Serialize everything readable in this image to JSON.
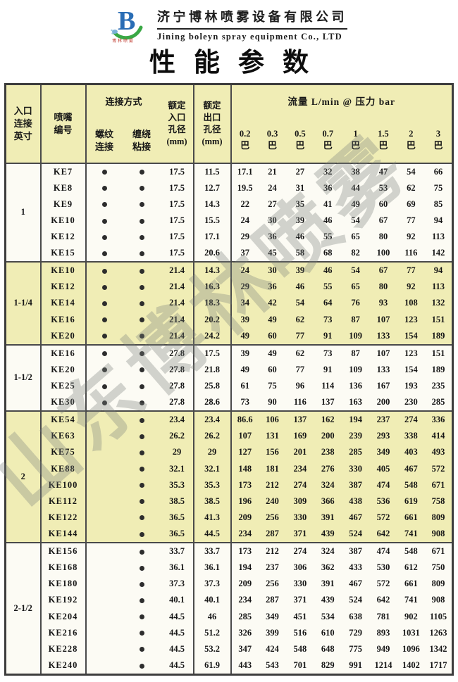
{
  "brand": {
    "company_cn": "济宁博林喷雾设备有限公司",
    "company_en": "Jining boleyn spray equipment Co., LTD",
    "logo_letter": "B",
    "logo_caption": "博林喷雾"
  },
  "title": "性能参数",
  "watermark": "山东博林喷雾",
  "colors": {
    "band_yellow": "#f0edb5",
    "band_white": "#fcfbf4",
    "border_dark": "#4a4a4a",
    "logo_blue": "#2a6db5",
    "logo_green": "#3aa845",
    "logo_caption_red": "#c0392e"
  },
  "table": {
    "headers": {
      "inlet": "入口\n连接\n英寸",
      "nozzle": "喷嘴\n编号",
      "connection": "连接方式",
      "thread": "螺纹\n连接",
      "wrap": "缠绕\n粘接",
      "in_dia": "额定\n入口\n孔径\n(mm)",
      "out_dia": "额定\n出口\n孔径\n(mm)",
      "flow": "流量  L/min @  压力 bar"
    },
    "pressures": [
      "0.2",
      "0.3",
      "0.5",
      "0.7",
      "1",
      "1.5",
      "2",
      "3"
    ],
    "pressure_unit": "巴",
    "groups": [
      {
        "inlet": "1",
        "band": "white",
        "rows": [
          {
            "nozzle": "KE7",
            "thread": true,
            "wrap": true,
            "in_dia": "17.5",
            "out_dia": "11.5",
            "flows": [
              "17.1",
              "21",
              "27",
              "32",
              "38",
              "47",
              "54",
              "66"
            ]
          },
          {
            "nozzle": "KE8",
            "thread": true,
            "wrap": true,
            "in_dia": "17.5",
            "out_dia": "12.7",
            "flows": [
              "19.5",
              "24",
              "31",
              "36",
              "44",
              "53",
              "62",
              "75"
            ]
          },
          {
            "nozzle": "KE9",
            "thread": true,
            "wrap": true,
            "in_dia": "17.5",
            "out_dia": "14.3",
            "flows": [
              "22",
              "27",
              "35",
              "41",
              "49",
              "60",
              "69",
              "85"
            ]
          },
          {
            "nozzle": "KE10",
            "thread": true,
            "wrap": true,
            "in_dia": "17.5",
            "out_dia": "15.5",
            "flows": [
              "24",
              "30",
              "39",
              "46",
              "54",
              "67",
              "77",
              "94"
            ]
          },
          {
            "nozzle": "KE12",
            "thread": true,
            "wrap": true,
            "in_dia": "17.5",
            "out_dia": "17.1",
            "flows": [
              "29",
              "36",
              "46",
              "55",
              "65",
              "80",
              "92",
              "113"
            ]
          },
          {
            "nozzle": "KE15",
            "thread": true,
            "wrap": true,
            "in_dia": "17.5",
            "out_dia": "20.6",
            "flows": [
              "37",
              "45",
              "58",
              "68",
              "82",
              "100",
              "116",
              "142"
            ]
          }
        ]
      },
      {
        "inlet": "1-1/4",
        "band": "yellow",
        "rows": [
          {
            "nozzle": "KE10",
            "thread": true,
            "wrap": true,
            "in_dia": "21.4",
            "out_dia": "14.3",
            "flows": [
              "24",
              "30",
              "39",
              "46",
              "54",
              "67",
              "77",
              "94"
            ]
          },
          {
            "nozzle": "KE12",
            "thread": true,
            "wrap": true,
            "in_dia": "21.4",
            "out_dia": "16.3",
            "flows": [
              "29",
              "36",
              "46",
              "55",
              "65",
              "80",
              "92",
              "113"
            ]
          },
          {
            "nozzle": "KE14",
            "thread": true,
            "wrap": true,
            "in_dia": "21.4",
            "out_dia": "18.3",
            "flows": [
              "34",
              "42",
              "54",
              "64",
              "76",
              "93",
              "108",
              "132"
            ]
          },
          {
            "nozzle": "KE16",
            "thread": true,
            "wrap": true,
            "in_dia": "21.4",
            "out_dia": "20.2",
            "flows": [
              "39",
              "49",
              "62",
              "73",
              "87",
              "107",
              "123",
              "151"
            ]
          },
          {
            "nozzle": "KE20",
            "thread": true,
            "wrap": true,
            "in_dia": "21.4",
            "out_dia": "24.2",
            "flows": [
              "49",
              "60",
              "77",
              "91",
              "109",
              "133",
              "154",
              "189"
            ]
          }
        ]
      },
      {
        "inlet": "1-1/2",
        "band": "white",
        "rows": [
          {
            "nozzle": "KE16",
            "thread": true,
            "wrap": true,
            "in_dia": "27.8",
            "out_dia": "17.5",
            "flows": [
              "39",
              "49",
              "62",
              "73",
              "87",
              "107",
              "123",
              "151"
            ]
          },
          {
            "nozzle": "KE20",
            "thread": true,
            "wrap": true,
            "in_dia": "27.8",
            "out_dia": "21.8",
            "flows": [
              "49",
              "60",
              "77",
              "91",
              "109",
              "133",
              "154",
              "189"
            ]
          },
          {
            "nozzle": "KE25",
            "thread": true,
            "wrap": true,
            "in_dia": "27.8",
            "out_dia": "25.8",
            "flows": [
              "61",
              "75",
              "96",
              "114",
              "136",
              "167",
              "193",
              "235"
            ]
          },
          {
            "nozzle": "KE30",
            "thread": true,
            "wrap": true,
            "in_dia": "27.8",
            "out_dia": "28.6",
            "flows": [
              "73",
              "90",
              "116",
              "137",
              "163",
              "200",
              "230",
              "285"
            ]
          }
        ]
      },
      {
        "inlet": "2",
        "band": "yellow",
        "rows": [
          {
            "nozzle": "KE54",
            "thread": false,
            "wrap": true,
            "in_dia": "23.4",
            "out_dia": "23.4",
            "flows": [
              "86.6",
              "106",
              "137",
              "162",
              "194",
              "237",
              "274",
              "336"
            ]
          },
          {
            "nozzle": "KE63",
            "thread": false,
            "wrap": true,
            "in_dia": "26.2",
            "out_dia": "26.2",
            "flows": [
              "107",
              "131",
              "169",
              "200",
              "239",
              "293",
              "338",
              "414"
            ]
          },
          {
            "nozzle": "KE75",
            "thread": false,
            "wrap": true,
            "in_dia": "29",
            "out_dia": "29",
            "flows": [
              "127",
              "156",
              "201",
              "238",
              "285",
              "349",
              "403",
              "493"
            ]
          },
          {
            "nozzle": "KE88",
            "thread": false,
            "wrap": true,
            "in_dia": "32.1",
            "out_dia": "32.1",
            "flows": [
              "148",
              "181",
              "234",
              "276",
              "330",
              "405",
              "467",
              "572"
            ]
          },
          {
            "nozzle": "KE100",
            "thread": false,
            "wrap": true,
            "in_dia": "35.3",
            "out_dia": "35.3",
            "flows": [
              "173",
              "212",
              "274",
              "324",
              "387",
              "474",
              "548",
              "671"
            ]
          },
          {
            "nozzle": "KE112",
            "thread": false,
            "wrap": true,
            "in_dia": "38.5",
            "out_dia": "38.5",
            "flows": [
              "196",
              "240",
              "309",
              "366",
              "438",
              "536",
              "619",
              "758"
            ]
          },
          {
            "nozzle": "KE122",
            "thread": false,
            "wrap": true,
            "in_dia": "36.5",
            "out_dia": "41.3",
            "flows": [
              "209",
              "256",
              "330",
              "391",
              "467",
              "572",
              "661",
              "809"
            ]
          },
          {
            "nozzle": "KE144",
            "thread": false,
            "wrap": true,
            "in_dia": "36.5",
            "out_dia": "44.5",
            "flows": [
              "234",
              "287",
              "371",
              "439",
              "524",
              "642",
              "741",
              "908"
            ]
          }
        ]
      },
      {
        "inlet": "2-1/2",
        "band": "white",
        "rows": [
          {
            "nozzle": "KE156",
            "thread": false,
            "wrap": true,
            "in_dia": "33.7",
            "out_dia": "33.7",
            "flows": [
              "173",
              "212",
              "274",
              "324",
              "387",
              "474",
              "548",
              "671"
            ]
          },
          {
            "nozzle": "KE168",
            "thread": false,
            "wrap": true,
            "in_dia": "36.1",
            "out_dia": "36.1",
            "flows": [
              "194",
              "237",
              "306",
              "362",
              "433",
              "530",
              "612",
              "750"
            ]
          },
          {
            "nozzle": "KE180",
            "thread": false,
            "wrap": true,
            "in_dia": "37.3",
            "out_dia": "37.3",
            "flows": [
              "209",
              "256",
              "330",
              "391",
              "467",
              "572",
              "661",
              "809"
            ]
          },
          {
            "nozzle": "KE192",
            "thread": false,
            "wrap": true,
            "in_dia": "40.1",
            "out_dia": "40.1",
            "flows": [
              "234",
              "287",
              "371",
              "439",
              "524",
              "642",
              "741",
              "908"
            ]
          },
          {
            "nozzle": "KE204",
            "thread": false,
            "wrap": true,
            "in_dia": "44.5",
            "out_dia": "46",
            "flows": [
              "285",
              "349",
              "451",
              "534",
              "638",
              "781",
              "902",
              "1105"
            ]
          },
          {
            "nozzle": "KE216",
            "thread": false,
            "wrap": true,
            "in_dia": "44.5",
            "out_dia": "51.2",
            "flows": [
              "326",
              "399",
              "516",
              "610",
              "729",
              "893",
              "1031",
              "1263"
            ]
          },
          {
            "nozzle": "KE228",
            "thread": false,
            "wrap": true,
            "in_dia": "44.5",
            "out_dia": "53.2",
            "flows": [
              "347",
              "424",
              "548",
              "648",
              "775",
              "949",
              "1096",
              "1342"
            ]
          },
          {
            "nozzle": "KE240",
            "thread": false,
            "wrap": true,
            "in_dia": "44.5",
            "out_dia": "61.9",
            "flows": [
              "443",
              "543",
              "701",
              "829",
              "991",
              "1214",
              "1402",
              "1717"
            ]
          }
        ]
      }
    ]
  }
}
